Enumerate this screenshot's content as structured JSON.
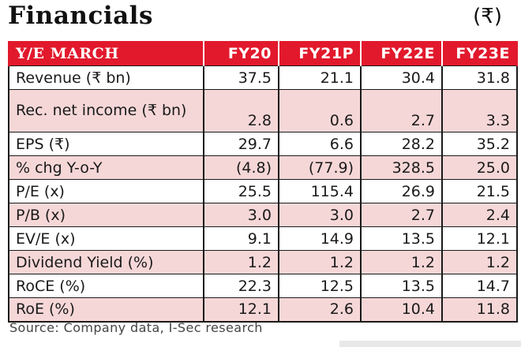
{
  "title": "Financials",
  "currency": "(₹)",
  "columns": [
    "Y/E MARCH",
    "FY20",
    "FY21P",
    "FY22E",
    "FY23E"
  ],
  "rows": [
    {
      "label": "Revenue (₹ bn)",
      "values": [
        "37.5",
        "21.1",
        "30.4",
        "31.8"
      ]
    },
    {
      "label": "Rec. net income (₹ bn)",
      "values": [
        "2.8",
        "0.6",
        "2.7",
        "3.3"
      ]
    },
    {
      "label": "EPS (₹)",
      "values": [
        "29.7",
        "6.6",
        "28.2",
        "35.2"
      ]
    },
    {
      "label": "% chg Y-o-Y",
      "values": [
        "(4.8)",
        "(77.9)",
        "328.5",
        "25.0"
      ]
    },
    {
      "label": "P/E (x)",
      "values": [
        "25.5",
        "115.4",
        "26.9",
        "21.5"
      ]
    },
    {
      "label": "P/B (x)",
      "values": [
        "3.0",
        "3.0",
        "2.7",
        "2.4"
      ]
    },
    {
      "label": "EV/E (x)",
      "values": [
        "9.1",
        "14.9",
        "13.5",
        "12.1"
      ]
    },
    {
      "label": "Dividend Yield (%)",
      "values": [
        "1.2",
        "1.2",
        "1.2",
        "1.2"
      ]
    },
    {
      "label": "RoCE (%)",
      "values": [
        "22.3",
        "12.5",
        "13.5",
        "14.7"
      ]
    },
    {
      "label": "RoE (%)",
      "values": [
        "12.1",
        "2.6",
        "10.4",
        "11.8"
      ]
    }
  ],
  "source": "Source: Company data, I-Sec research",
  "colors": {
    "header": "#e2192c",
    "alt_row": "#f6d7d7"
  }
}
